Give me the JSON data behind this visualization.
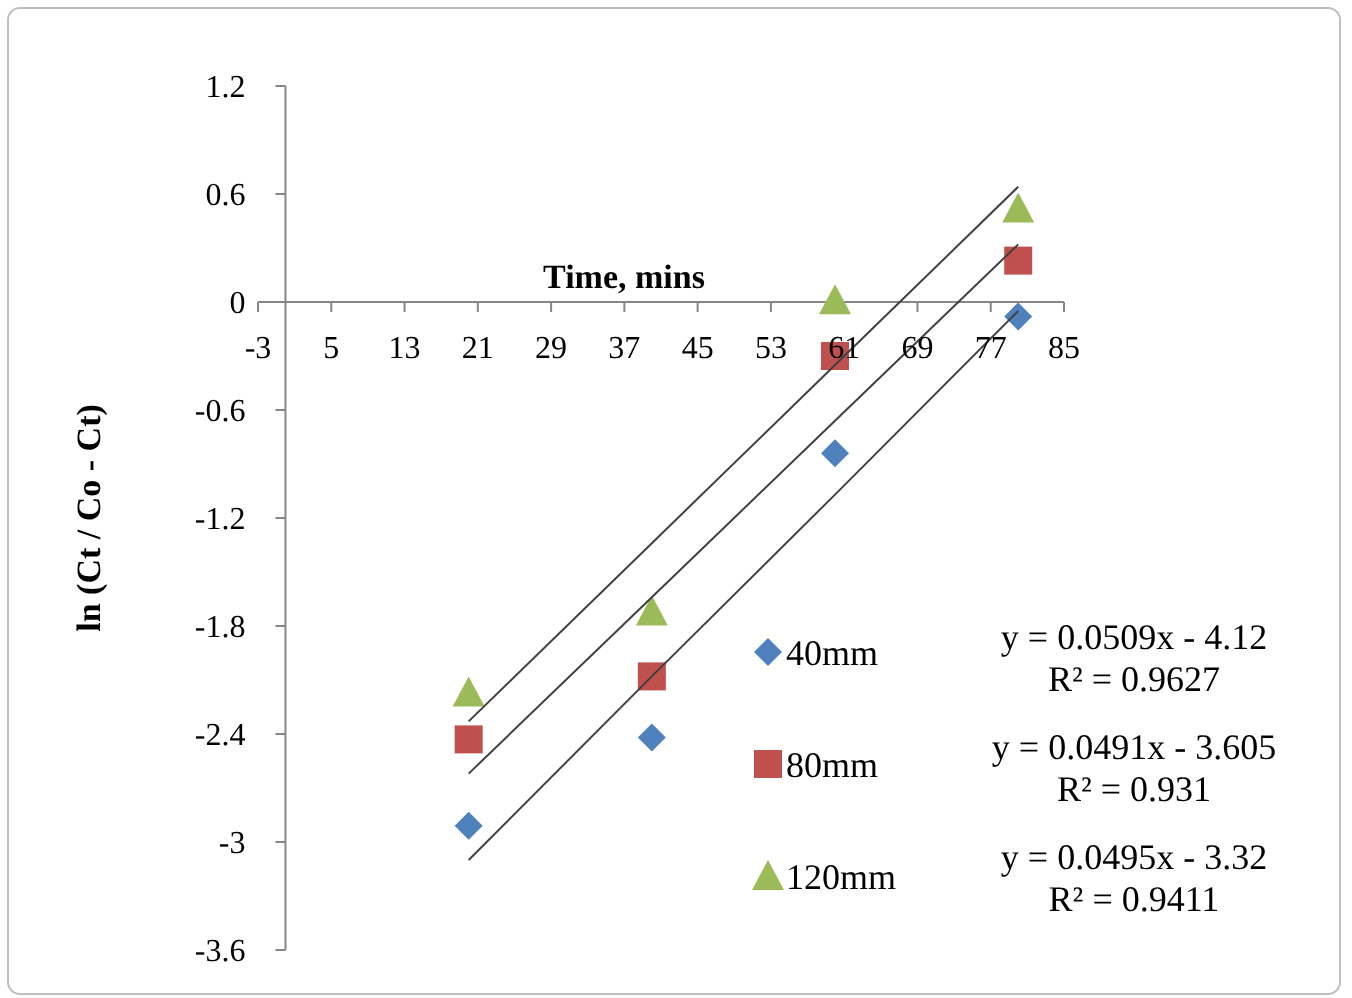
{
  "chart_data": {
    "type": "scatter",
    "xlabel": "Time, mins",
    "ylabel": "ln (Ct / Co - Ct)",
    "x": [
      20,
      40,
      60,
      80
    ],
    "series": [
      {
        "name": "40mm",
        "color": "#4f81bd",
        "marker": "diamond",
        "values": [
          -2.91,
          -2.42,
          -0.84,
          -0.08
        ]
      },
      {
        "name": "80mm",
        "color": "#c0504d",
        "marker": "square",
        "values": [
          -2.43,
          -2.08,
          -0.3,
          0.23
        ]
      },
      {
        "name": "120mm",
        "color": "#9bbb59",
        "marker": "triangle",
        "values": [
          -2.17,
          -1.72,
          0.01,
          0.52
        ]
      },
      {
        "type": "line",
        "color": "#404040",
        "marker": "none",
        "values": [
          -3.1,
          -2.08,
          -1.07,
          -0.05
        ]
      },
      {
        "type": "line",
        "color": "#404040",
        "marker": "none",
        "values": [
          -2.62,
          -1.64,
          -0.66,
          0.32
        ]
      },
      {
        "type": "line",
        "color": "#404040",
        "marker": "none",
        "values": [
          -2.33,
          -1.34,
          -0.35,
          0.64
        ]
      }
    ],
    "xlim": [
      -3,
      85
    ],
    "xticks": [
      -3,
      5,
      13,
      21,
      29,
      37,
      45,
      53,
      61,
      69,
      77,
      85
    ],
    "ylim": [
      -3.6,
      1.2
    ],
    "yticks": [
      -3.6,
      -3,
      -2.4,
      -1.8,
      -1.2,
      -0.6,
      0,
      0.6,
      1.2
    ],
    "grid": false,
    "legend": "bottom right",
    "annotations": [
      "y = 0.0509x - 4.12",
      "R² = 0.9627",
      "y = 0.0491x - 3.605",
      "R² = 0.931",
      "y = 0.0495x - 3.32",
      "R² = 0.9411"
    ]
  }
}
